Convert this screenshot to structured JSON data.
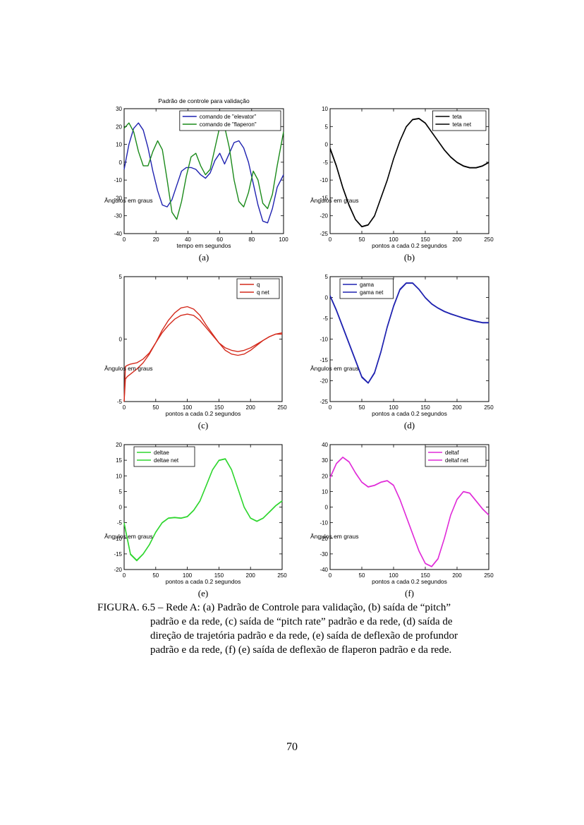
{
  "chart_data": [
    {
      "type": "line",
      "panel_label": "(a)",
      "title": "Padrão de controle para validação",
      "xlabel": "tempo em segundos",
      "ylabel": "Ângulos em graus",
      "xlim": [
        0,
        100
      ],
      "ylim": [
        -40,
        30
      ],
      "xticks": [
        0,
        20,
        40,
        60,
        80,
        100
      ],
      "yticks": [
        -40,
        -30,
        -20,
        -10,
        0,
        10,
        20,
        30
      ],
      "legend": "top-right",
      "series": [
        {
          "name": "comando de \"elevator\"",
          "color": "#1f22b0",
          "x": [
            0,
            3,
            6,
            9,
            12,
            15,
            18,
            21,
            24,
            27,
            30,
            33,
            36,
            39,
            42,
            45,
            48,
            51,
            54,
            57,
            60,
            63,
            66,
            69,
            72,
            75,
            78,
            81,
            84,
            87,
            90,
            93,
            96,
            100
          ],
          "y": [
            -4,
            10,
            19,
            22,
            18,
            8,
            -5,
            -16,
            -24,
            -25,
            -21,
            -13,
            -5,
            -3,
            -3,
            -4,
            -7,
            -9,
            -6,
            1,
            5,
            -1,
            5,
            11,
            12,
            8,
            0,
            -12,
            -24,
            -33,
            -34,
            -26,
            -14,
            -7
          ]
        },
        {
          "name": "comando de \"flaperon\"",
          "color": "#1a8a1a",
          "x": [
            0,
            3,
            6,
            9,
            12,
            15,
            18,
            21,
            24,
            27,
            30,
            33,
            36,
            39,
            42,
            45,
            48,
            51,
            54,
            57,
            60,
            63,
            66,
            69,
            72,
            75,
            78,
            81,
            84,
            87,
            90,
            93,
            96,
            100
          ],
          "y": [
            19,
            22,
            17,
            6,
            -2,
            -2,
            6,
            12,
            7,
            -10,
            -28,
            -32,
            -22,
            -8,
            3,
            5,
            -2,
            -7,
            -4,
            8,
            20,
            20,
            8,
            -10,
            -22,
            -25,
            -17,
            -5,
            -10,
            -23,
            -26,
            -18,
            -2,
            17
          ]
        }
      ]
    },
    {
      "type": "line",
      "panel_label": "(b)",
      "xlabel": "pontos a cada 0.2 segundos",
      "ylabel": "Ângulos em graus",
      "xlim": [
        0,
        250
      ],
      "ylim": [
        -25,
        10
      ],
      "xticks": [
        0,
        50,
        100,
        150,
        200,
        250
      ],
      "yticks": [
        -25,
        -20,
        -15,
        -10,
        -5,
        0,
        5,
        10
      ],
      "legend": "top-right",
      "series": [
        {
          "name": "teta",
          "color": "#000000",
          "x": [
            0,
            10,
            20,
            30,
            40,
            50,
            60,
            70,
            80,
            90,
            100,
            110,
            120,
            130,
            140,
            150,
            160,
            170,
            180,
            190,
            200,
            210,
            220,
            230,
            240,
            250
          ],
          "y": [
            -1,
            -6,
            -12,
            -17,
            -21,
            -23,
            -22.5,
            -20,
            -15,
            -10,
            -4,
            1,
            5,
            7,
            7.3,
            6,
            3.5,
            1,
            -1.5,
            -3.5,
            -5,
            -6,
            -6.5,
            -6.5,
            -6,
            -5
          ]
        },
        {
          "name": "teta net",
          "color": "#000000",
          "x": [
            0,
            10,
            20,
            30,
            40,
            50,
            60,
            70,
            80,
            90,
            100,
            110,
            120,
            130,
            140,
            150,
            160,
            170,
            180,
            190,
            200,
            210,
            220,
            230,
            240,
            250
          ],
          "y": [
            -1.3,
            -6.2,
            -12.2,
            -17.2,
            -21.1,
            -23.1,
            -22.6,
            -20.1,
            -15.1,
            -10.1,
            -4.1,
            0.9,
            4.9,
            6.9,
            7.2,
            5.9,
            3.4,
            0.9,
            -1.6,
            -3.6,
            -5.1,
            -6.1,
            -6.6,
            -6.6,
            -6.1,
            -5.1
          ]
        }
      ]
    },
    {
      "type": "line",
      "panel_label": "(c)",
      "xlabel": "pontos a cada 0.2 segundos",
      "ylabel": "Ângulos em graus",
      "xlim": [
        0,
        250
      ],
      "ylim": [
        -5,
        5
      ],
      "xticks": [
        0,
        50,
        100,
        150,
        200,
        250
      ],
      "yticks": [
        -5,
        0,
        5
      ],
      "legend": "top-right",
      "series": [
        {
          "name": "q",
          "color": "#d42a1c",
          "x": [
            0,
            2,
            5,
            10,
            20,
            30,
            40,
            50,
            60,
            70,
            80,
            90,
            100,
            110,
            120,
            130,
            140,
            150,
            160,
            170,
            180,
            190,
            200,
            210,
            220,
            230,
            240,
            250
          ],
          "y": [
            -5,
            -2.2,
            -2.1,
            -2.0,
            -1.9,
            -1.6,
            -1.1,
            -0.3,
            0.5,
            1.1,
            1.6,
            1.9,
            2.0,
            1.9,
            1.5,
            0.9,
            0.3,
            -0.3,
            -0.7,
            -0.9,
            -1.0,
            -0.9,
            -0.7,
            -0.4,
            -0.1,
            0.2,
            0.4,
            0.5
          ]
        },
        {
          "name": "q net",
          "color": "#d42a1c",
          "x": [
            0,
            2,
            5,
            10,
            20,
            30,
            40,
            50,
            60,
            70,
            80,
            90,
            100,
            110,
            120,
            130,
            140,
            150,
            160,
            170,
            180,
            190,
            200,
            210,
            220,
            230,
            240,
            250
          ],
          "y": [
            -5,
            -3.2,
            -3.0,
            -2.8,
            -2.4,
            -1.9,
            -1.2,
            -0.3,
            0.7,
            1.5,
            2.1,
            2.5,
            2.6,
            2.4,
            1.9,
            1.1,
            0.4,
            -0.3,
            -0.9,
            -1.2,
            -1.3,
            -1.2,
            -0.9,
            -0.5,
            -0.1,
            0.2,
            0.4,
            0.4
          ]
        }
      ]
    },
    {
      "type": "line",
      "panel_label": "(d)",
      "xlabel": "pontos a cada 0.2 segundos",
      "ylabel": "Ângulos em graus",
      "xlim": [
        0,
        250
      ],
      "ylim": [
        -25,
        5
      ],
      "xticks": [
        0,
        50,
        100,
        150,
        200,
        250
      ],
      "yticks": [
        -25,
        -20,
        -15,
        -10,
        -5,
        0,
        5
      ],
      "legend": "top-left",
      "series": [
        {
          "name": "gama",
          "color": "#1f22b0",
          "x": [
            0,
            10,
            20,
            30,
            40,
            50,
            60,
            70,
            80,
            90,
            100,
            110,
            120,
            130,
            140,
            150,
            160,
            170,
            180,
            190,
            200,
            210,
            220,
            230,
            240,
            250
          ],
          "y": [
            0.5,
            -3,
            -7,
            -11,
            -15,
            -19,
            -20.5,
            -18,
            -13,
            -7,
            -2,
            2,
            3.5,
            3.5,
            2,
            0,
            -1.5,
            -2.5,
            -3.3,
            -3.9,
            -4.4,
            -4.9,
            -5.3,
            -5.7,
            -6,
            -6
          ]
        },
        {
          "name": "gama net",
          "color": "#1f22b0",
          "x": [
            0,
            10,
            20,
            30,
            40,
            50,
            60,
            70,
            80,
            90,
            100,
            110,
            120,
            130,
            140,
            150,
            160,
            170,
            180,
            190,
            200,
            210,
            220,
            230,
            240,
            250
          ],
          "y": [
            0.3,
            -3.2,
            -7.2,
            -11.2,
            -15.2,
            -19.2,
            -20.6,
            -18.2,
            -13.2,
            -7.2,
            -2.2,
            1.8,
            3.4,
            3.4,
            1.9,
            -0.1,
            -1.6,
            -2.6,
            -3.4,
            -4,
            -4.5,
            -5,
            -5.4,
            -5.8,
            -6.1,
            -6.1
          ]
        }
      ]
    },
    {
      "type": "line",
      "panel_label": "(e)",
      "xlabel": "pontos a cada 0.2 segundos",
      "ylabel": "Ângulos em graus",
      "xlim": [
        0,
        250
      ],
      "ylim": [
        -20,
        20
      ],
      "xticks": [
        0,
        50,
        100,
        150,
        200,
        250
      ],
      "yticks": [
        -20,
        -15,
        -10,
        -5,
        0,
        5,
        10,
        15,
        20
      ],
      "legend": "top-left",
      "series": [
        {
          "name": "deltae",
          "color": "#2fd62f",
          "x": [
            0,
            10,
            20,
            30,
            40,
            50,
            60,
            70,
            80,
            90,
            100,
            110,
            120,
            130,
            140,
            150,
            160,
            170,
            180,
            190,
            200,
            210,
            220,
            230,
            240,
            250
          ],
          "y": [
            -5,
            -15,
            -17,
            -15,
            -12,
            -8,
            -5,
            -3.5,
            -3.3,
            -3.5,
            -3,
            -1,
            2,
            7,
            12,
            15,
            15.5,
            12,
            6,
            0,
            -3.5,
            -4.5,
            -3.5,
            -1.5,
            0.5,
            2
          ]
        },
        {
          "name": "deltae net",
          "color": "#2fd62f",
          "x": [
            0,
            10,
            20,
            30,
            40,
            50,
            60,
            70,
            80,
            90,
            100,
            110,
            120,
            130,
            140,
            150,
            160,
            170,
            180,
            190,
            200,
            210,
            220,
            230,
            240,
            250
          ],
          "y": [
            -5.3,
            -15.2,
            -17.2,
            -15.1,
            -12.1,
            -8.1,
            -5.1,
            -3.6,
            -3.4,
            -3.6,
            -3.1,
            -1.1,
            1.9,
            6.9,
            11.9,
            14.9,
            15.4,
            11.9,
            5.9,
            -0.1,
            -3.6,
            -4.6,
            -3.6,
            -1.6,
            0.4,
            1.9
          ]
        }
      ]
    },
    {
      "type": "line",
      "panel_label": "(f)",
      "xlabel": "pontos a cada 0.2 segundos",
      "ylabel": "Ângulos em graus",
      "xlim": [
        0,
        250
      ],
      "ylim": [
        -40,
        40
      ],
      "xticks": [
        0,
        50,
        100,
        150,
        200,
        250
      ],
      "yticks": [
        -40,
        -30,
        -20,
        -10,
        0,
        10,
        20,
        30,
        40
      ],
      "legend": "top-right",
      "series": [
        {
          "name": "deltaf",
          "color": "#e02ad8",
          "x": [
            0,
            10,
            20,
            30,
            40,
            50,
            60,
            70,
            80,
            90,
            100,
            110,
            120,
            130,
            140,
            150,
            160,
            170,
            180,
            190,
            200,
            210,
            220,
            230,
            240,
            250
          ],
          "y": [
            19,
            28,
            32,
            29,
            22,
            16,
            13,
            14,
            16,
            17,
            14,
            5,
            -6,
            -17,
            -28,
            -36,
            -38,
            -33,
            -20,
            -5,
            5,
            10,
            9,
            4,
            -1,
            -5
          ]
        },
        {
          "name": "deltaf net",
          "color": "#e02ad8",
          "x": [
            0,
            10,
            20,
            30,
            40,
            50,
            60,
            70,
            80,
            90,
            100,
            110,
            120,
            130,
            140,
            150,
            160,
            170,
            180,
            190,
            200,
            210,
            220,
            230,
            240,
            250
          ],
          "y": [
            18.6,
            27.8,
            31.8,
            28.8,
            21.8,
            15.8,
            12.8,
            13.8,
            15.8,
            16.8,
            13.8,
            4.8,
            -6.2,
            -17.2,
            -28.2,
            -36.2,
            -38.2,
            -33.2,
            -20.2,
            -5.2,
            4.8,
            9.8,
            8.8,
            3.8,
            -1.2,
            -5.2
          ]
        }
      ]
    }
  ],
  "caption": {
    "head": "FIGURA. 6.5 –  Rede A: (a) Padrão de Controle para validação, (b) saída de “pitch”",
    "line2": "padrão e da rede,  (c) saída de “pitch rate” padrão e da rede, (d) saída de",
    "line3": "direção de trajetória padrão e da rede, (e) saída de deflexão de profundor",
    "line4": "padrão e da rede, (f) (e) saída de deflexão de flaperon padrão e da rede."
  },
  "page_number": "70"
}
